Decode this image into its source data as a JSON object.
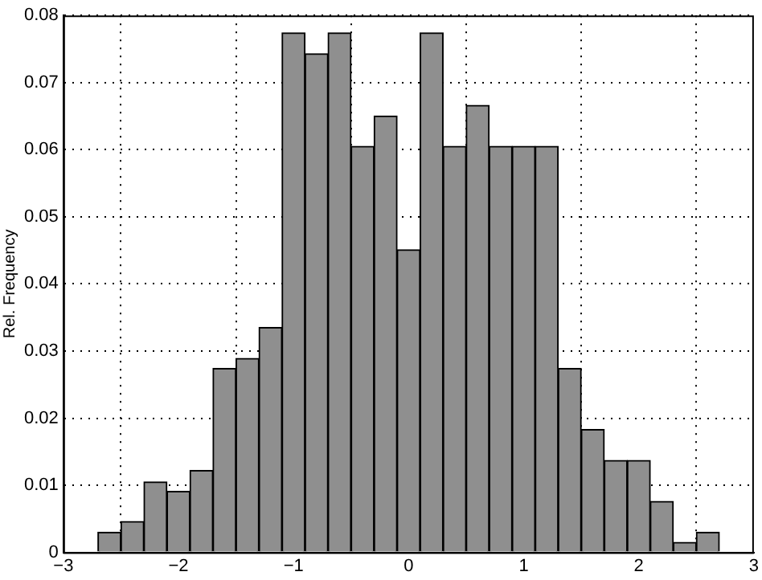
{
  "chart_data": {
    "type": "histogram",
    "ylabel": "Rel. Frequency",
    "color": "#8f8f8f",
    "bins": [
      -2.7,
      -2.5,
      -2.3,
      -2.1,
      -1.9,
      -1.7,
      -1.5,
      -1.3,
      -1.1,
      -0.9,
      -0.7,
      -0.5,
      -0.3,
      -0.1,
      0.1,
      0.3,
      0.5,
      0.7,
      0.9,
      1.1,
      1.3,
      1.5,
      1.7,
      1.9,
      2.1,
      2.3,
      2.5,
      2.7
    ],
    "values": [
      0.003,
      0.0046,
      0.0105,
      0.0091,
      0.0122,
      0.0274,
      0.0289,
      0.0335,
      0.0774,
      0.0743,
      0.0774,
      0.0605,
      0.065,
      0.0451,
      0.0774,
      0.0605,
      0.0666,
      0.0605,
      0.0605,
      0.0605,
      0.0274,
      0.0183,
      0.0137,
      0.0137,
      0.0076,
      0.0015,
      0.003
    ],
    "xlim": [
      -3,
      3
    ],
    "xticks": [
      -3,
      -2,
      -1,
      0,
      1,
      2,
      3
    ],
    "ylim": [
      0,
      0.08
    ],
    "yticks": [
      0,
      0.01,
      0.02,
      0.03,
      0.04,
      0.05,
      0.06,
      0.07,
      0.08
    ],
    "grid": true
  }
}
